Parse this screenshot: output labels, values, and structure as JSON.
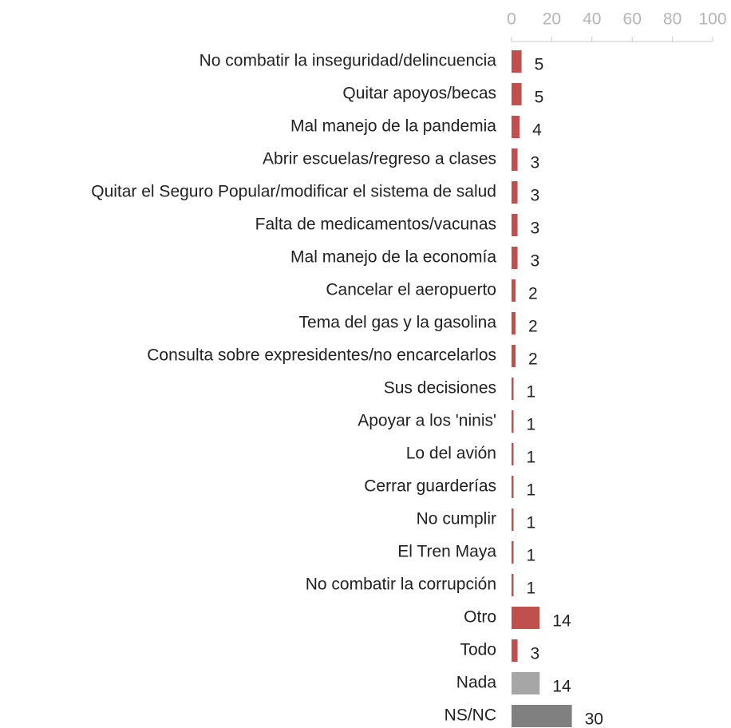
{
  "chart_data": {
    "type": "bar",
    "orientation": "horizontal",
    "categories": [
      "No combatir la inseguridad/delincuencia",
      "Quitar apoyos/becas",
      "Mal manejo de la pandemia",
      "Abrir escuelas/regreso a clases",
      "Quitar el Seguro Popular/modificar el sistema de salud",
      "Falta de medicamentos/vacunas",
      "Mal manejo de la economía",
      "Cancelar el aeropuerto",
      "Tema del gas y la gasolina",
      "Consulta sobre expresidentes/no encarcelarlos",
      "Sus decisiones",
      "Apoyar a los 'ninis'",
      "Lo del avión",
      "Cerrar guarderías",
      "No cumplir",
      "El Tren Maya",
      "No combatir la corrupción",
      "Otro",
      "Todo",
      "Nada",
      "NS/NC"
    ],
    "values": [
      5,
      5,
      4,
      3,
      3,
      3,
      3,
      2,
      2,
      2,
      1,
      1,
      1,
      1,
      1,
      1,
      1,
      14,
      3,
      14,
      30
    ],
    "colors": [
      "#c0504d",
      "#c0504d",
      "#c0504d",
      "#c0504d",
      "#c0504d",
      "#c0504d",
      "#c0504d",
      "#c0504d",
      "#c0504d",
      "#c0504d",
      "#c0504d",
      "#c0504d",
      "#c0504d",
      "#c0504d",
      "#c0504d",
      "#c0504d",
      "#c0504d",
      "#c0504d",
      "#c0504d",
      "#a6a6a6",
      "#808080"
    ],
    "xlim": [
      0,
      100
    ],
    "xticks": [
      0,
      20,
      40,
      60,
      80,
      100
    ],
    "axis_position": "top"
  }
}
